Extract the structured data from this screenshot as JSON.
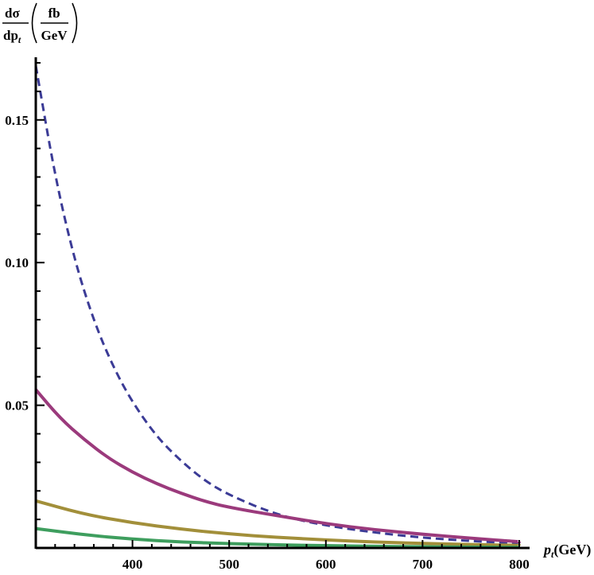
{
  "chart_data": {
    "type": "line",
    "ylabel": {
      "numerator": "dσ",
      "denominator": "dp",
      "denominator_sub": "t",
      "unit_numerator": "fb",
      "unit_denominator": "GeV"
    },
    "xlabel": {
      "var": "p",
      "var_sub": "t",
      "unit": "(GeV)"
    },
    "xlim": [
      300,
      810
    ],
    "ylim": [
      0,
      0.172
    ],
    "x_ticks": [
      400,
      500,
      600,
      700,
      800
    ],
    "y_ticks": [
      0.05,
      0.1,
      0.15
    ],
    "x_tick_labels": [
      "400",
      "500",
      "600",
      "700",
      "800"
    ],
    "y_tick_labels": [
      "0.05",
      "0.10",
      "0.15"
    ],
    "grid": false,
    "series": [
      {
        "color": "#3B3B96",
        "dash": true,
        "x": [
          300,
          320,
          340,
          360,
          380,
          400,
          425,
          450,
          475,
          500,
          550,
          600,
          650,
          700,
          750,
          800
        ],
        "y": [
          0.169,
          0.13,
          0.101,
          0.0795,
          0.0635,
          0.051,
          0.039,
          0.0305,
          0.0235,
          0.0185,
          0.0115,
          0.0078,
          0.0054,
          0.0036,
          0.0024,
          0.0016
        ]
      },
      {
        "color": "#9B3A7C",
        "dash": false,
        "x": [
          300,
          325,
          350,
          375,
          400,
          425,
          450,
          475,
          500,
          550,
          600,
          650,
          700,
          750,
          800
        ],
        "y": [
          0.0555,
          0.0455,
          0.038,
          0.0315,
          0.0265,
          0.0225,
          0.0192,
          0.0163,
          0.0142,
          0.0113,
          0.0085,
          0.0064,
          0.0048,
          0.0034,
          0.0022
        ]
      },
      {
        "color": "#A28F3A",
        "dash": false,
        "x": [
          300,
          350,
          400,
          450,
          500,
          550,
          600,
          650,
          700,
          750,
          800
        ],
        "y": [
          0.0165,
          0.0118,
          0.0088,
          0.0066,
          0.0049,
          0.0037,
          0.0028,
          0.0021,
          0.0016,
          0.0012,
          0.0009
        ]
      },
      {
        "color": "#3E9E5E",
        "dash": false,
        "x": [
          300,
          350,
          400,
          450,
          500,
          550,
          600,
          650,
          700,
          750,
          800
        ],
        "y": [
          0.0068,
          0.0046,
          0.0031,
          0.0021,
          0.0015,
          0.0011,
          0.0008,
          0.0006,
          0.0004,
          0.0003,
          0.0002
        ]
      }
    ]
  }
}
